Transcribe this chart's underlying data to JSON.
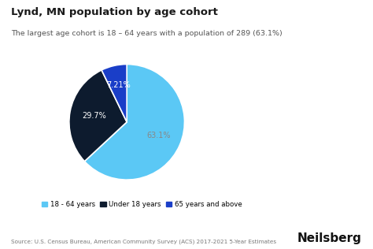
{
  "title": "Lynd, MN population by age cohort",
  "subtitle": "The largest age cohort is 18 – 64 years with a population of 289 (63.1%)",
  "slices": [
    63.1,
    29.7,
    7.21
  ],
  "labels": [
    "18 - 64 years",
    "Under 18 years",
    "65 years and above"
  ],
  "colors": [
    "#5bc8f5",
    "#0d1b2e",
    "#1a3ec8"
  ],
  "pct_labels": [
    "63.1%",
    "29.7%",
    "7.21%"
  ],
  "pct_colors": [
    "#888888",
    "#ffffff",
    "#ffffff"
  ],
  "source_text": "Source: U.S. Census Bureau, American Community Survey (ACS) 2017-2021 5-Year Estimates",
  "brand": "Neilsberg",
  "bg_color": "#ffffff",
  "startangle": 90,
  "legend_colors": [
    "#5bc8f5",
    "#0d1b2e",
    "#1a3ec8"
  ]
}
